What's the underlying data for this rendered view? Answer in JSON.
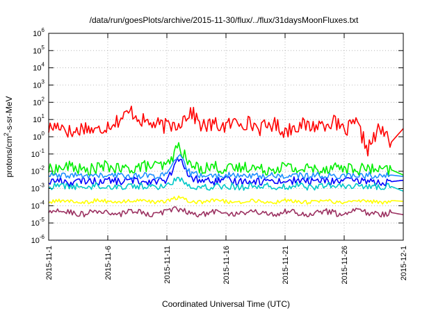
{
  "chart_data": {
    "type": "line",
    "title": "/data/run/goesPlots/archive/2015-11-30/flux/../flux/31daysMoonFluxes.txt",
    "xlabel": "Coordinated Universal Time (UTC)",
    "ylabel": {
      "pre": "protons/cm",
      "sup": "2",
      "post": "-s-sr-MeV"
    },
    "yscale": "log",
    "ylim": [
      1e-06,
      1000000.0
    ],
    "ytick_exponents": [
      -6,
      -5,
      -4,
      -3,
      -2,
      -1,
      0,
      1,
      2,
      3,
      4,
      5,
      6
    ],
    "ytick_base": "10",
    "xlim": [
      "2015-11-01",
      "2015-12-01"
    ],
    "xticks": [
      "2015-11-1",
      "2015-11-6",
      "2015-11-11",
      "2015-11-16",
      "2015-11-21",
      "2015-11-26",
      "2015-12-1"
    ],
    "grid": true,
    "x_days": [
      0,
      1,
      2,
      3,
      4,
      5,
      6,
      7,
      8,
      9,
      10,
      11,
      12,
      13,
      14,
      15,
      16,
      17,
      18,
      19,
      20,
      21,
      22,
      23,
      24,
      25,
      26,
      27,
      28,
      29,
      30
    ],
    "series": [
      {
        "color": "#ff0000",
        "values": [
          3,
          5,
          1.5,
          4,
          2,
          5,
          10,
          30,
          8,
          5,
          4,
          6,
          30,
          4,
          5,
          4,
          8,
          6,
          3,
          6,
          2,
          5,
          4,
          5,
          8,
          2,
          6,
          0.2,
          3,
          0.5,
          3
        ]
      },
      {
        "color": "#00ee00",
        "values": [
          0.012,
          0.015,
          0.02,
          0.01,
          0.015,
          0.02,
          0.012,
          0.015,
          0.02,
          0.02,
          0.02,
          0.3,
          0.02,
          0.015,
          0.02,
          0.012,
          0.015,
          0.02,
          0.012,
          0.015,
          0.02,
          0.012,
          0.015,
          0.012,
          0.02,
          0.015,
          0.012,
          0.015,
          0.01,
          0.012,
          0.006
        ]
      },
      {
        "color": "#0000ff",
        "values": [
          0.0025,
          0.003,
          0.002,
          0.003,
          0.0025,
          0.003,
          0.0025,
          0.003,
          0.0025,
          0.003,
          0.0025,
          0.06,
          0.004,
          0.003,
          0.0025,
          0.003,
          0.0025,
          0.003,
          0.0025,
          0.003,
          0.0025,
          0.003,
          0.0025,
          0.003,
          0.0025,
          0.003,
          0.0025,
          0.003,
          0.002,
          0.0025,
          0.003
        ]
      },
      {
        "color": "#1e90ff",
        "values": [
          0.006,
          0.005,
          0.006,
          0.005,
          0.006,
          0.005,
          0.006,
          0.005,
          0.006,
          0.005,
          0.006,
          0.09,
          0.007,
          0.006,
          0.005,
          0.006,
          0.005,
          0.006,
          0.005,
          0.006,
          0.005,
          0.006,
          0.005,
          0.006,
          0.005,
          0.006,
          0.005,
          0.006,
          0.005,
          0.006,
          0.005
        ]
      },
      {
        "color": "#00c8c8",
        "values": [
          0.0012,
          0.0015,
          0.0013,
          0.0012,
          0.0015,
          0.0013,
          0.0012,
          0.0015,
          0.0013,
          0.0012,
          0.0015,
          0.004,
          0.0015,
          0.0012,
          0.0013,
          0.0015,
          0.0012,
          0.0013,
          0.0015,
          0.0012,
          0.0013,
          0.0015,
          0.0012,
          0.0013,
          0.0015,
          0.0012,
          0.0013,
          0.0015,
          0.0012,
          0.0013,
          0.0007
        ]
      },
      {
        "color": "#ffff00",
        "values": [
          0.00015,
          0.0002,
          0.00018,
          0.00015,
          0.0002,
          0.00018,
          0.00015,
          0.0002,
          0.00018,
          0.00015,
          0.0002,
          0.0003,
          0.00018,
          0.00015,
          0.0002,
          0.00018,
          0.00015,
          0.0002,
          0.00018,
          0.00015,
          0.0002,
          0.00018,
          0.00015,
          0.0002,
          0.00018,
          0.00015,
          0.0002,
          0.00018,
          0.00015,
          0.0002,
          0.00018
        ]
      },
      {
        "color": "#9b3060",
        "values": [
          4e-05,
          5e-05,
          4e-05,
          3e-05,
          5e-05,
          4e-05,
          3e-05,
          5e-05,
          4e-05,
          3e-05,
          5e-05,
          6e-05,
          4e-05,
          3e-05,
          5e-05,
          4e-05,
          3e-05,
          5e-05,
          4e-05,
          3e-05,
          5e-05,
          4e-05,
          3e-05,
          5e-05,
          4e-05,
          3e-05,
          5e-05,
          4e-05,
          3e-05,
          4e-05,
          3e-05
        ]
      }
    ]
  }
}
